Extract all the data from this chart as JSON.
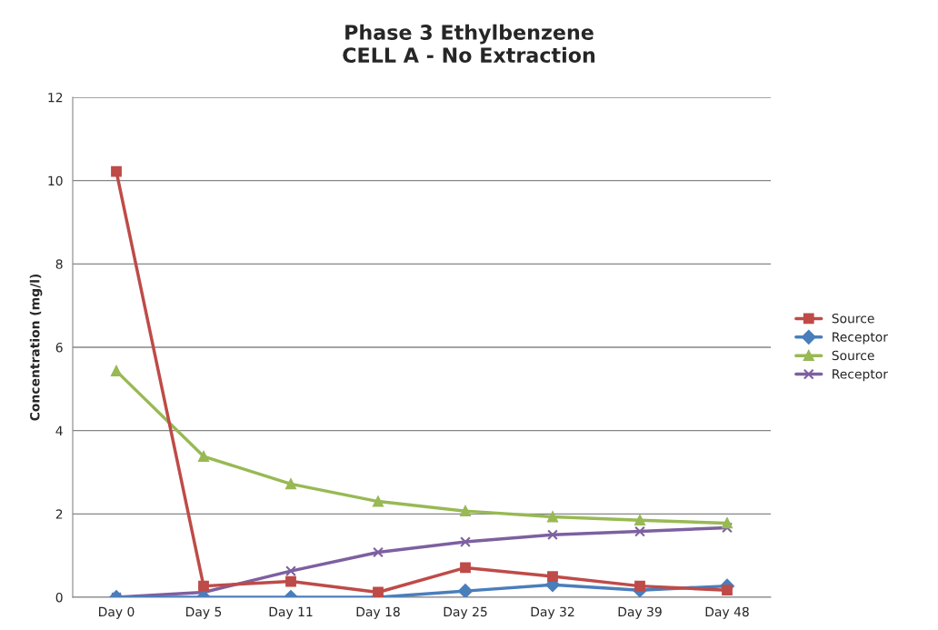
{
  "chart_data": {
    "type": "line",
    "title": "Phase 3 Ethylbenzene\nCELL A - No Extraction",
    "ylabel": "Concentration (mg/l)",
    "categories": [
      "Day 0",
      "Day 5",
      "Day 11",
      "Day 18",
      "Day 25",
      "Day 32",
      "Day 39",
      "Day 48"
    ],
    "series": [
      {
        "name": "Source",
        "color": "#be4b48",
        "marker": "square",
        "values": [
          10.22,
          0.27,
          0.38,
          0.12,
          0.71,
          0.5,
          0.27,
          0.17
        ]
      },
      {
        "name": "Receptor",
        "color": "#4a7ebb",
        "marker": "diamond",
        "values": [
          0,
          0,
          0,
          0,
          0.15,
          0.3,
          0.17,
          0.27
        ]
      },
      {
        "name": "Source",
        "color": "#98b954",
        "marker": "triangle",
        "values": [
          5.43,
          3.38,
          2.72,
          2.3,
          2.07,
          1.93,
          1.85,
          1.78
        ]
      },
      {
        "name": "Receptor",
        "color": "#7d60a0",
        "marker": "cross",
        "values": [
          0,
          0.12,
          0.63,
          1.08,
          1.33,
          1.5,
          1.58,
          1.67
        ]
      }
    ],
    "ylim": [
      0,
      12
    ],
    "yticks": [
      0,
      2,
      4,
      6,
      8,
      10,
      12
    ],
    "grid": "y",
    "legend": "right"
  }
}
